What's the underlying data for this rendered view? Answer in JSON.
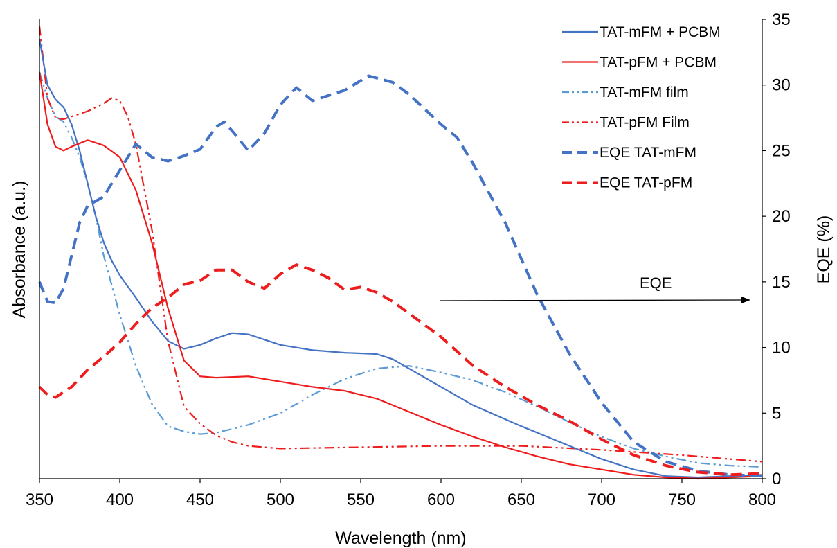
{
  "chart_data": {
    "type": "line",
    "xlabel": "Wavelength (nm)",
    "ylabel_left": "Absorbance (a.u.)",
    "ylabel_right": "EQE (%)",
    "xlim": [
      350,
      800
    ],
    "y_right_lim": [
      0,
      35
    ],
    "x_ticks": [
      "350",
      "400",
      "450",
      "500",
      "550",
      "600",
      "650",
      "700",
      "750",
      "800"
    ],
    "y_right_ticks": [
      "0",
      "5",
      "10",
      "15",
      "20",
      "25",
      "30",
      "35"
    ],
    "legend_position": "top-right",
    "annotation": {
      "text": "EQE"
    },
    "series": [
      {
        "name": "TAT-mFM + PCBM",
        "axis": "left",
        "color": "#4472c4",
        "style": "solid",
        "x": [
          350,
          355,
          360,
          365,
          370,
          375,
          380,
          385,
          390,
          395,
          400,
          410,
          420,
          430,
          440,
          450,
          460,
          470,
          480,
          490,
          500,
          520,
          540,
          560,
          570,
          580,
          600,
          620,
          650,
          680,
          700,
          720,
          740,
          760,
          780,
          800
        ],
        "y": [
          33.5,
          30,
          28.9,
          28.3,
          27,
          25,
          22.5,
          20,
          18,
          16.6,
          15.5,
          13.8,
          12,
          10.5,
          9.9,
          10.2,
          10.7,
          11.1,
          11,
          10.6,
          10.2,
          9.8,
          9.6,
          9.5,
          9.1,
          8.4,
          7,
          5.6,
          4,
          2.5,
          1.5,
          0.7,
          0.2,
          0.1,
          0.2,
          0.3
        ]
      },
      {
        "name": "TAT-pFM + PCBM",
        "axis": "left",
        "color": "#ee1c1c",
        "style": "solid",
        "x": [
          350,
          355,
          360,
          365,
          370,
          380,
          390,
          400,
          410,
          420,
          430,
          440,
          450,
          460,
          480,
          500,
          520,
          540,
          560,
          580,
          600,
          620,
          640,
          660,
          680,
          700,
          720,
          740,
          760,
          780,
          800
        ],
        "y": [
          31,
          27,
          25.3,
          25,
          25.3,
          25.8,
          25.4,
          24.5,
          22,
          18,
          13,
          9,
          7.8,
          7.7,
          7.8,
          7.4,
          7,
          6.7,
          6.1,
          5.1,
          4.1,
          3.2,
          2.4,
          1.7,
          1.1,
          0.7,
          0.3,
          0.1,
          0,
          0.1,
          0.2
        ]
      },
      {
        "name": "TAT-mFM film",
        "axis": "left",
        "color": "#5b9bd5",
        "style": "dashdotdot",
        "x": [
          350,
          355,
          360,
          365,
          370,
          375,
          380,
          385,
          390,
          400,
          410,
          420,
          430,
          440,
          450,
          460,
          480,
          500,
          520,
          540,
          560,
          580,
          600,
          620,
          640,
          660,
          680,
          700,
          720,
          740,
          760,
          780,
          800
        ],
        "y": [
          31,
          29,
          27.6,
          27.2,
          26,
          24.5,
          22.5,
          20,
          17,
          12.5,
          8.6,
          5.7,
          4,
          3.6,
          3.4,
          3.5,
          4.1,
          5,
          6.4,
          7.6,
          8.4,
          8.6,
          8.1,
          7.5,
          6.6,
          5.5,
          4.3,
          3.2,
          2.3,
          1.7,
          1.2,
          1,
          0.9
        ]
      },
      {
        "name": "TAT-pFM Film",
        "axis": "left",
        "color": "#ee1c1c",
        "style": "dashdotdot",
        "x": [
          350,
          355,
          360,
          365,
          370,
          380,
          390,
          395,
          400,
          405,
          410,
          420,
          430,
          440,
          450,
          460,
          470,
          480,
          500,
          550,
          600,
          650,
          700,
          750,
          800
        ],
        "y": [
          34.5,
          29,
          27.5,
          27.4,
          27.6,
          28,
          28.6,
          29,
          28.8,
          27.6,
          25.5,
          19,
          10.5,
          5.5,
          4.2,
          3.3,
          2.8,
          2.5,
          2.3,
          2.4,
          2.5,
          2.5,
          2.2,
          1.8,
          1.3
        ]
      },
      {
        "name": "EQE TAT-mFM",
        "axis": "right",
        "color": "#4472c4",
        "style": "dashed",
        "x": [
          350,
          355,
          360,
          365,
          370,
          375,
          380,
          390,
          400,
          410,
          420,
          430,
          440,
          450,
          460,
          465,
          470,
          480,
          490,
          500,
          510,
          520,
          540,
          555,
          570,
          580,
          600,
          610,
          620,
          640,
          660,
          680,
          700,
          720,
          740,
          760,
          780,
          800
        ],
        "y": [
          15,
          13.5,
          13.4,
          14.5,
          17,
          19.5,
          20.8,
          21.5,
          23.5,
          25.5,
          24.5,
          24.2,
          24.6,
          25.1,
          26.8,
          27.2,
          26.5,
          25,
          26.3,
          28.5,
          29.8,
          28.8,
          29.6,
          30.7,
          30.2,
          29.3,
          27,
          26,
          24,
          19.5,
          14,
          9.5,
          5.8,
          2.8,
          1.3,
          0.6,
          0.3,
          0.2
        ]
      },
      {
        "name": "EQE TAT-pFM",
        "axis": "right",
        "color": "#ee1c1c",
        "style": "dashed",
        "x": [
          350,
          355,
          360,
          370,
          380,
          390,
          400,
          410,
          420,
          430,
          440,
          450,
          460,
          470,
          480,
          490,
          500,
          510,
          520,
          530,
          540,
          550,
          560,
          570,
          580,
          600,
          620,
          640,
          660,
          680,
          700,
          720,
          740,
          760,
          780,
          800
        ],
        "y": [
          7,
          6.4,
          6.2,
          7,
          8.3,
          9.3,
          10.4,
          11.8,
          13,
          13.8,
          14.8,
          15.1,
          15.9,
          15.9,
          15,
          14.5,
          15.6,
          16.3,
          15.9,
          15.3,
          14.4,
          14.6,
          14.2,
          13.5,
          12.6,
          10.8,
          8.6,
          7,
          5.6,
          4.4,
          3,
          1.8,
          1,
          0.5,
          0.3,
          0.4
        ]
      }
    ]
  }
}
